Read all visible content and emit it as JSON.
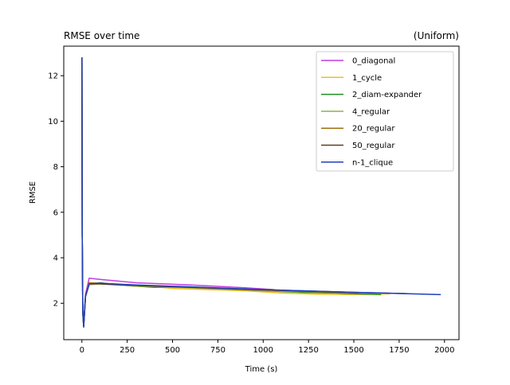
{
  "chart_data": {
    "type": "line",
    "title": "RMSE over time",
    "subtitle": "(Uniform)",
    "xlabel": "Time (s)",
    "ylabel": "RMSE",
    "xlim": [
      -100,
      2080
    ],
    "ylim": [
      0.4,
      13.3
    ],
    "xticks": [
      0,
      250,
      500,
      750,
      1000,
      1250,
      1500,
      1750,
      2000
    ],
    "yticks": [
      2,
      4,
      6,
      8,
      10,
      12
    ],
    "grid": false,
    "legend_position": "top-right",
    "series": [
      {
        "name": "0_diagonal",
        "color": "#bf3fdf",
        "x": [
          0,
          2,
          5,
          10,
          20,
          40,
          100,
          300,
          600,
          900,
          1060
        ],
        "y": [
          12.8,
          5.0,
          1.6,
          1.05,
          2.4,
          3.1,
          3.05,
          2.9,
          2.8,
          2.68,
          2.6
        ]
      },
      {
        "name": "1_cycle",
        "color": "#efbf1f",
        "x": [
          0,
          2,
          5,
          10,
          20,
          40,
          100,
          300,
          500,
          700,
          900,
          1100,
          1300,
          1500,
          1700
        ],
        "y": [
          12.8,
          5.0,
          1.6,
          1.0,
          2.3,
          2.8,
          2.85,
          2.8,
          2.65,
          2.6,
          2.55,
          2.45,
          2.4,
          2.38,
          2.42
        ]
      },
      {
        "name": "2_diam-expander",
        "color": "#1f8f1f",
        "x": [
          0,
          2,
          5,
          10,
          20,
          40,
          100,
          200,
          400,
          600,
          800,
          1000,
          1200,
          1400,
          1650
        ],
        "y": [
          12.8,
          5.0,
          1.6,
          1.0,
          2.3,
          2.85,
          2.9,
          2.8,
          2.7,
          2.72,
          2.62,
          2.55,
          2.48,
          2.45,
          2.38
        ]
      },
      {
        "name": "4_regular",
        "color": "#8faf4f",
        "x": [
          0,
          2,
          5,
          10,
          20,
          40,
          100,
          300,
          600,
          900,
          1200
        ],
        "y": [
          12.8,
          5.0,
          1.6,
          1.0,
          2.3,
          2.85,
          2.85,
          2.75,
          2.68,
          2.58,
          2.5
        ]
      },
      {
        "name": "20_regular",
        "color": "#9f6f0f",
        "x": [
          0,
          2,
          5,
          10,
          20,
          40,
          100,
          300,
          600,
          900,
          1200,
          1500
        ],
        "y": [
          12.8,
          5.0,
          1.6,
          1.0,
          2.3,
          2.9,
          2.88,
          2.78,
          2.7,
          2.6,
          2.52,
          2.45
        ]
      },
      {
        "name": "50_regular",
        "color": "#5f3f1f",
        "x": [
          0,
          2,
          5,
          10,
          20,
          40,
          100,
          300,
          600,
          900,
          1200,
          1500,
          1800
        ],
        "y": [
          12.8,
          5.0,
          1.6,
          1.0,
          2.3,
          2.85,
          2.85,
          2.78,
          2.7,
          2.62,
          2.55,
          2.48,
          2.42
        ]
      },
      {
        "name": "n-1_clique",
        "color": "#1f3fbf",
        "x": [
          0,
          2,
          5,
          10,
          20,
          40,
          100,
          300,
          600,
          900,
          1200,
          1500,
          1800,
          1980
        ],
        "y": [
          12.8,
          5.0,
          1.6,
          0.95,
          2.3,
          2.85,
          2.88,
          2.8,
          2.72,
          2.63,
          2.55,
          2.48,
          2.42,
          2.38
        ]
      }
    ]
  }
}
